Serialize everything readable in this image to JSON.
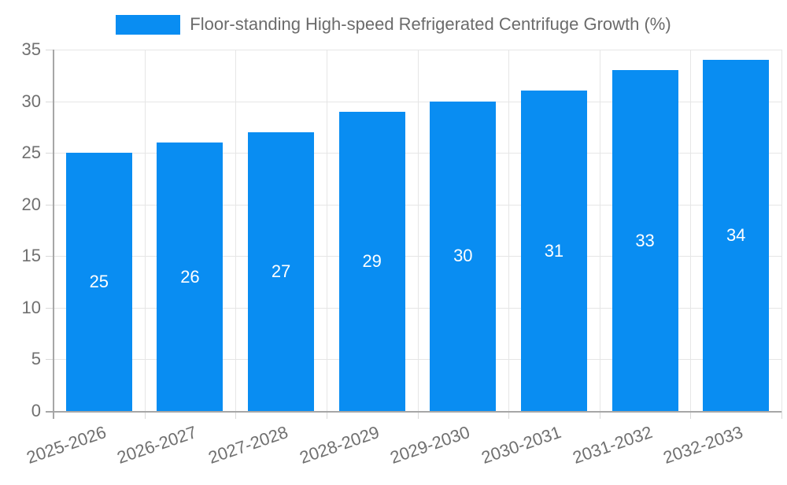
{
  "colors": {
    "bar": "#098df2",
    "grid": "#e6e6e6",
    "axis_line": "#a6a6a6",
    "tick_mark": "#d9d9d9",
    "tick_label_text": "#707070",
    "legend_text": "#6b6b6b",
    "bar_value_text": "#ffffff"
  },
  "chart_data": {
    "type": "bar",
    "categories": [
      "2025-2026",
      "2026-2027",
      "2027-2028",
      "2028-2029",
      "2029-2030",
      "2030-2031",
      "2031-2032",
      "2032-2033"
    ],
    "series": [
      {
        "name": "Floor-standing High-speed Refrigerated Centrifuge Growth (%)",
        "values": [
          25,
          26,
          27,
          29,
          30,
          31,
          33,
          34
        ]
      }
    ],
    "title": "",
    "xlabel": "",
    "ylabel": "",
    "ylim": [
      0,
      35
    ],
    "yticks": [
      0,
      5,
      10,
      15,
      20,
      25,
      30,
      35
    ],
    "grid": true,
    "legend_position": "top-center",
    "data_labels_position": "inside-middle",
    "x_label_rotation_deg": -19
  }
}
